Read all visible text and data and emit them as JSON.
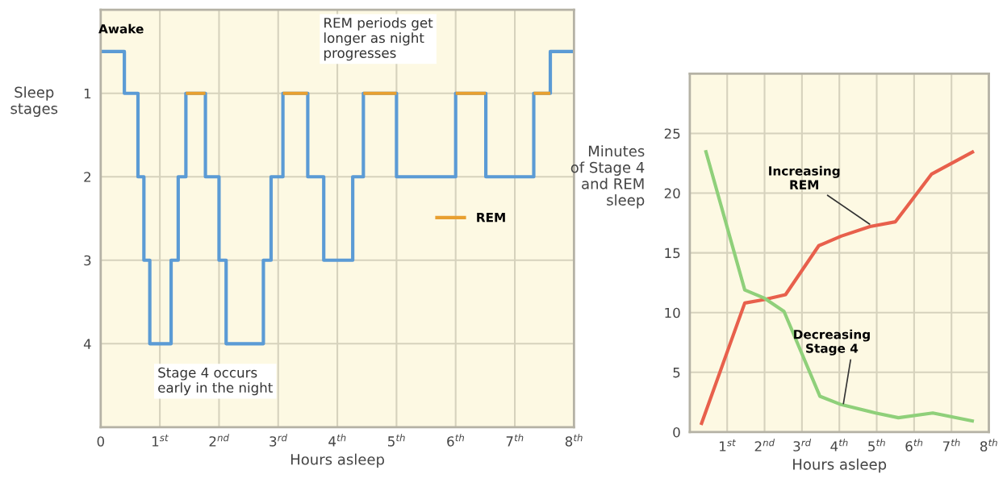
{
  "chart_data": [
    {
      "type": "step",
      "ylabel": "Sleep\nstages",
      "xlabel": "Hours asleep",
      "series": [
        {
          "color": "#5b9bd5",
          "x": [
            0,
            0.4,
            0.63,
            0.73,
            0.83,
            1.19,
            1.31,
            1.44,
            1.77,
            2.0,
            2.12,
            2.75,
            2.88,
            3.08,
            3.5,
            3.77,
            4.26,
            4.44,
            5.0,
            6.0,
            6.51,
            7.32,
            7.6,
            8
          ],
          "values": [
            0.5,
            1,
            2,
            3,
            4,
            3,
            2,
            1,
            2,
            3,
            4,
            3,
            2,
            1,
            2,
            3,
            2,
            1,
            2,
            1,
            2,
            1,
            0.5,
            0.5
          ]
        },
        {
          "name": "REM",
          "type": "line",
          "color": "#e8a030",
          "x": [
            1.44,
            1.77,
            1.9,
            3.08,
            3.5,
            3.6,
            4.44,
            5.0,
            5.5,
            6.0,
            6.51,
            7.0,
            7.32,
            7.6
          ],
          "values": [
            1,
            1,
            null,
            1,
            1,
            null,
            1,
            1,
            null,
            1,
            1,
            null,
            1,
            1
          ]
        }
      ],
      "xlim": [
        0,
        8
      ],
      "xticks": [
        0,
        {
          "value": 1,
          "label": "1$^{st}$"
        },
        {
          "value": 2,
          "label": "2$^{nd}$"
        },
        {
          "value": 3,
          "label": "3$^{rd}$"
        },
        {
          "value": 4,
          "label": "4$^{th}$"
        },
        {
          "value": 5,
          "label": "5$^{th}$"
        },
        {
          "value": 6,
          "label": "6$^{th}$"
        },
        {
          "value": 7,
          "label": "7$^{th}$"
        },
        {
          "value": 8,
          "label": "8$^{th}$"
        }
      ],
      "ylim": [
        5,
        0
      ],
      "yticks": [
        1,
        2,
        3,
        4
      ],
      "grid": true,
      "legend": "right",
      "annotations": [
        {
          "text": "Awake",
          "x": 0,
          "y": 0.5
        },
        "REM periods get\nlonger as night\nprogresses",
        "Stage 4 occurs\nearly in the night"
      ]
    },
    {
      "type": "line",
      "ylabel": "Minutes\nof Stage 4\nand REM\nsleep",
      "xlabel": "Hours asleep",
      "series": [
        {
          "color": "#e8604c",
          "x": [
            0.3,
            1.47,
            2.0,
            2.56,
            3.45,
            4.05,
            4.82,
            5.5,
            6.47,
            7.6
          ],
          "values": [
            0.6,
            10.8,
            11.1,
            11.5,
            15.6,
            16.4,
            17.2,
            17.6,
            21.6,
            23.5
          ]
        },
        {
          "color": "#8fd07a",
          "x": [
            0.42,
            1.47,
            2.0,
            2.52,
            3.48,
            4.05,
            4.97,
            5.58,
            6.5,
            7.6
          ],
          "values": [
            23.6,
            11.9,
            11.2,
            10.1,
            3.0,
            2.3,
            1.6,
            1.2,
            1.6,
            0.9
          ]
        }
      ],
      "xlim": [
        0,
        8
      ],
      "xticks": [
        {
          "value": 1,
          "label": "1$^{st}$"
        },
        {
          "value": 2,
          "label": "2$^{nd}$"
        },
        {
          "value": 3,
          "label": "3$^{rd}$"
        },
        {
          "value": 4,
          "label": "4$^{th}$"
        },
        {
          "value": 5,
          "label": "5$^{th}$"
        },
        {
          "value": 6,
          "label": "6$^{th}$"
        },
        {
          "value": 7,
          "label": "7$^{th}$"
        },
        {
          "value": 8,
          "label": "8$^{th}$"
        }
      ],
      "ylim": [
        0,
        30
      ],
      "yticks": [
        0,
        5,
        10,
        15,
        20,
        25
      ],
      "grid": true,
      "annotations": [
        {
          "text": "Increasing\nREM",
          "x": 4.86,
          "y": 17.3
        },
        {
          "text": "Decreasing\nStage 4",
          "x": 4.1,
          "y": 2.2
        }
      ]
    }
  ]
}
